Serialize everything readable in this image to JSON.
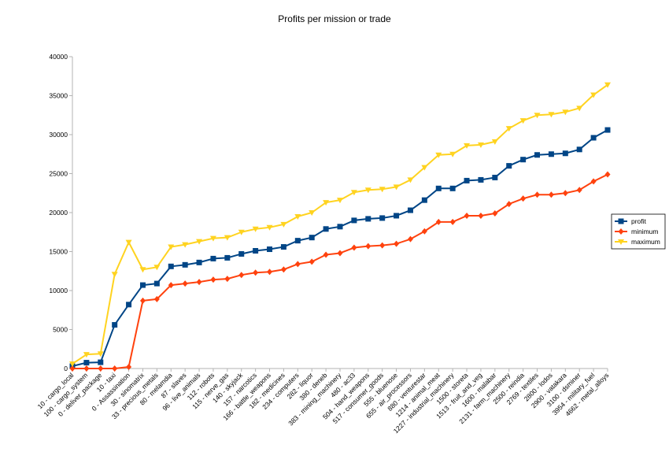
{
  "chart_data": {
    "type": "line",
    "title": "Profits per mission or trade",
    "xlabel": "",
    "ylabel": "",
    "ylim": [
      0,
      40000
    ],
    "yticks": [
      0,
      5000,
      10000,
      15000,
      20000,
      25000,
      30000,
      35000,
      40000
    ],
    "grid": false,
    "legend_position": "right",
    "categories": [
      "10 - cargo_local",
      "100 - cargo_system",
      "0 - deliver_package",
      "10 - taxi",
      "0 - Assassination",
      "30 - sinomatrix",
      "33 - precious_metals",
      "80 - melamdia",
      "87 - slaves",
      "96 - live_animals",
      "112 - robots",
      "115 - nerve_gas",
      "140 - skyjack",
      "157 - narcotics",
      "166 - battle_weapons",
      "182 - medicines",
      "234 - computers",
      "282 - liquor",
      "380 - deneb",
      "383 - mining_machinery",
      "480 - ac33",
      "504 - hand_weapons",
      "517 - consumer_goods",
      "555 - bluenose",
      "655 - air_processors",
      "880 - venturestar",
      "1214 - animal_meat",
      "1227 - industrial_machinery",
      "1500 - storeta",
      "1513 - fruit_and_veg",
      "1600 - malabar",
      "2131 - farm_machinery",
      "2500 - reindia",
      "2769 - textiles",
      "2800 - lodos",
      "2900 - vatakara",
      "3100 - dsminer",
      "3954 - military_fuel",
      "4662 - metal_alloys"
    ],
    "series": [
      {
        "name": "profit",
        "color": "#004586",
        "marker": "square",
        "values": [
          300,
          750,
          800,
          5600,
          8200,
          10700,
          10900,
          13100,
          13300,
          13600,
          14100,
          14200,
          14700,
          15100,
          15300,
          15600,
          16400,
          16800,
          17900,
          18200,
          19000,
          19200,
          19300,
          19600,
          20300,
          21600,
          23100,
          23100,
          24100,
          24200,
          24500,
          26000,
          26800,
          27400,
          27500,
          27600,
          28100,
          29600,
          30600
        ]
      },
      {
        "name": "minimum",
        "color": "#ff420e",
        "marker": "diamond",
        "values": [
          0,
          0,
          0,
          0,
          200,
          8700,
          8900,
          10700,
          10900,
          11100,
          11400,
          11500,
          12000,
          12300,
          12400,
          12700,
          13400,
          13700,
          14600,
          14800,
          15500,
          15700,
          15800,
          16000,
          16600,
          17600,
          18800,
          18800,
          19600,
          19600,
          19900,
          21100,
          21800,
          22300,
          22300,
          22500,
          22900,
          24000,
          24900
        ]
      },
      {
        "name": "maximum",
        "color": "#ffd320",
        "marker": "triangle-down",
        "values": [
          600,
          1800,
          1900,
          12100,
          16200,
          12700,
          13000,
          15600,
          15900,
          16300,
          16700,
          16800,
          17500,
          17900,
          18100,
          18500,
          19500,
          20000,
          21300,
          21600,
          22600,
          22900,
          23000,
          23300,
          24200,
          25800,
          27400,
          27500,
          28600,
          28700,
          29100,
          30800,
          31800,
          32500,
          32600,
          32900,
          33400,
          35100,
          36400
        ]
      }
    ]
  }
}
